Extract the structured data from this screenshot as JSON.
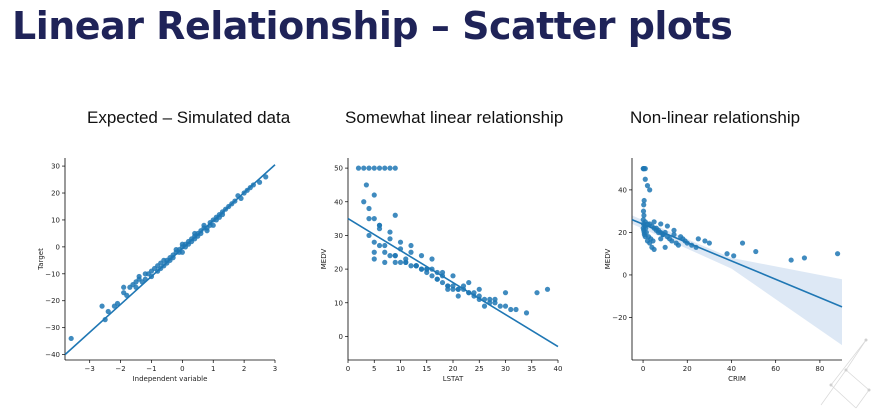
{
  "title": "Linear Relationship – Scatter plots",
  "colors": {
    "title": "#1f2358",
    "points": "#1f77b4",
    "line": "#1f77b4",
    "ci_band": "#c6d9ee"
  },
  "chart_data": [
    {
      "type": "scatter",
      "title": "Expected – Simulated data",
      "xlabel": "Independent variable",
      "ylabel": "Target",
      "xlim": [
        -3.8,
        3.0
      ],
      "ylim": [
        -42,
        33
      ],
      "xticks": [
        -3,
        -2,
        -1,
        0,
        1,
        2,
        3
      ],
      "yticks": [
        -40,
        -30,
        -20,
        -10,
        0,
        10,
        20,
        30
      ],
      "regression_line": [
        [
          -3.8,
          -40
        ],
        [
          3.0,
          30.5
        ]
      ],
      "x": [
        -3.6,
        -2.6,
        -2.5,
        -2.4,
        -2.2,
        -2.1,
        -1.9,
        -1.8,
        -1.7,
        -1.6,
        -1.5,
        -1.4,
        -1.3,
        -1.2,
        -1.1,
        -1.0,
        -0.9,
        -0.8,
        -0.7,
        -0.6,
        -0.5,
        -0.4,
        -0.3,
        -0.2,
        -0.1,
        0.0,
        0.1,
        0.2,
        0.3,
        0.4,
        0.5,
        0.6,
        0.7,
        0.8,
        0.9,
        1.0,
        1.1,
        1.2,
        1.3,
        1.4,
        1.5,
        1.6,
        1.7,
        1.8,
        1.9,
        2.0,
        2.1,
        2.2,
        2.3,
        2.5,
        2.7,
        -1.9,
        -1.4,
        -1.2,
        -0.8,
        -0.6,
        -0.4,
        -0.2,
        0.0,
        0.2,
        0.4,
        0.6,
        0.7,
        0.9,
        1.1,
        1.3,
        -1.5,
        -1.0,
        -0.7,
        -0.3,
        -0.1,
        0.1,
        0.3,
        0.5,
        0.8,
        1.0,
        1.2,
        0.0,
        -0.5,
        0.4
      ],
      "y": [
        -34,
        -22,
        -27,
        -24,
        -22,
        -21,
        -17,
        -18,
        -15,
        -14,
        -15,
        -12,
        -13,
        -10,
        -10,
        -9,
        -8,
        -9,
        -6,
        -5,
        -6,
        -4,
        -3,
        -1,
        -2,
        0,
        1,
        1,
        3,
        4,
        4,
        6,
        7,
        7,
        9,
        10,
        11,
        11,
        12,
        14,
        15,
        16,
        17,
        19,
        18,
        20,
        21,
        22,
        23,
        24,
        26,
        -15,
        -11,
        -12,
        -7,
        -7,
        -5,
        -2,
        1,
        2,
        3,
        5,
        8,
        8,
        10,
        13,
        -13,
        -11,
        -8,
        -4,
        -1,
        0,
        2,
        5,
        6,
        8,
        12,
        -2,
        -5,
        5
      ]
    },
    {
      "type": "scatter",
      "title": "Somewhat linear relationship",
      "xlabel": "LSTAT",
      "ylabel": "MEDV",
      "xlim": [
        0,
        40
      ],
      "ylim": [
        -7,
        53
      ],
      "xticks": [
        0,
        5,
        10,
        15,
        20,
        25,
        30,
        35,
        40
      ],
      "yticks": [
        0,
        10,
        20,
        30,
        40,
        50
      ],
      "regression_line": [
        [
          0,
          35
        ],
        [
          40,
          -3
        ]
      ],
      "x": [
        2,
        3,
        4,
        5,
        6,
        7,
        8,
        9,
        3,
        4,
        5,
        6,
        3.5,
        4,
        5,
        6,
        7,
        8,
        9,
        10,
        11,
        12,
        13,
        14,
        15,
        16,
        17,
        18,
        19,
        20,
        21,
        22,
        23,
        24,
        25,
        26,
        27,
        28,
        29,
        30,
        31,
        32,
        34,
        36,
        38,
        5,
        7,
        9,
        11,
        13,
        15,
        17,
        19,
        21,
        23,
        25,
        27,
        30,
        6,
        8,
        10,
        12,
        14,
        16,
        18,
        20,
        22,
        24,
        26,
        28,
        5,
        7,
        9,
        11,
        13,
        15,
        17,
        19,
        21,
        4,
        6,
        8,
        10,
        12,
        14,
        16,
        18,
        20,
        23,
        25,
        5,
        9
      ],
      "y": [
        50,
        50,
        50,
        50,
        50,
        50,
        50,
        50,
        40,
        38,
        35,
        33,
        45,
        30,
        28,
        27,
        25,
        24,
        24,
        22,
        22,
        21,
        21,
        20,
        19,
        18,
        17,
        16,
        15,
        15,
        14,
        14,
        13,
        12,
        12,
        11,
        11,
        10,
        9,
        9,
        8,
        8,
        7,
        13,
        14,
        25,
        27,
        24,
        22,
        21,
        20,
        17,
        14,
        14,
        13,
        11,
        10,
        13,
        32,
        31,
        26,
        25,
        20,
        20,
        18,
        14,
        15,
        13,
        9,
        11,
        23,
        22,
        22,
        23,
        21,
        20,
        19,
        15,
        12,
        35,
        33,
        29,
        28,
        27,
        24,
        23,
        19,
        18,
        16,
        14,
        42,
        36
      ]
    },
    {
      "type": "scatter",
      "title": "Non-linear relationship",
      "xlabel": "CRIM",
      "ylabel": "MEDV",
      "xlim": [
        -5,
        90
      ],
      "ylim": [
        -40,
        55
      ],
      "xticks": [
        0,
        20,
        40,
        60,
        80
      ],
      "yticks": [
        -20,
        0,
        20,
        40
      ],
      "regression_line": [
        [
          -5,
          26
        ],
        [
          90,
          -15
        ]
      ],
      "ci_band": {
        "upper": [
          [
            -5,
            28
          ],
          [
            40,
            8
          ],
          [
            90,
            -2
          ]
        ],
        "lower": [
          [
            -5,
            24
          ],
          [
            40,
            3
          ],
          [
            90,
            -33
          ]
        ]
      },
      "x": [
        0.1,
        0.2,
        0.5,
        1,
        1,
        2,
        3,
        0.5,
        0.3,
        0.2,
        0.4,
        0.1,
        1,
        2,
        3,
        4,
        5,
        6,
        7,
        8,
        9,
        10,
        11,
        12,
        13,
        14,
        15,
        16,
        17,
        18,
        19,
        20,
        22,
        24,
        25,
        28,
        30,
        38,
        41,
        45,
        51,
        67,
        73,
        88,
        0.5,
        1,
        2,
        3,
        4,
        5,
        6,
        7,
        8,
        9,
        10,
        0.1,
        0.3,
        0.6,
        1.5,
        2.5,
        3.5,
        4.5,
        0.2,
        0.8,
        1.2,
        5,
        8,
        11,
        14
      ],
      "y": [
        50,
        50,
        50,
        50,
        45,
        42,
        40,
        35,
        33,
        30,
        28,
        26,
        25,
        24,
        24,
        23,
        22,
        22,
        21,
        20,
        19,
        20,
        18,
        17,
        16,
        19,
        15,
        14,
        18,
        17,
        16,
        15,
        14,
        13,
        17,
        16,
        15,
        10,
        9,
        15,
        11,
        7,
        8,
        10,
        20,
        18,
        16,
        15,
        13,
        12,
        21,
        20,
        17,
        19,
        13,
        22,
        21,
        19,
        20,
        18,
        17,
        16,
        24,
        23,
        22,
        25,
        24,
        23,
        21
      ]
    }
  ]
}
